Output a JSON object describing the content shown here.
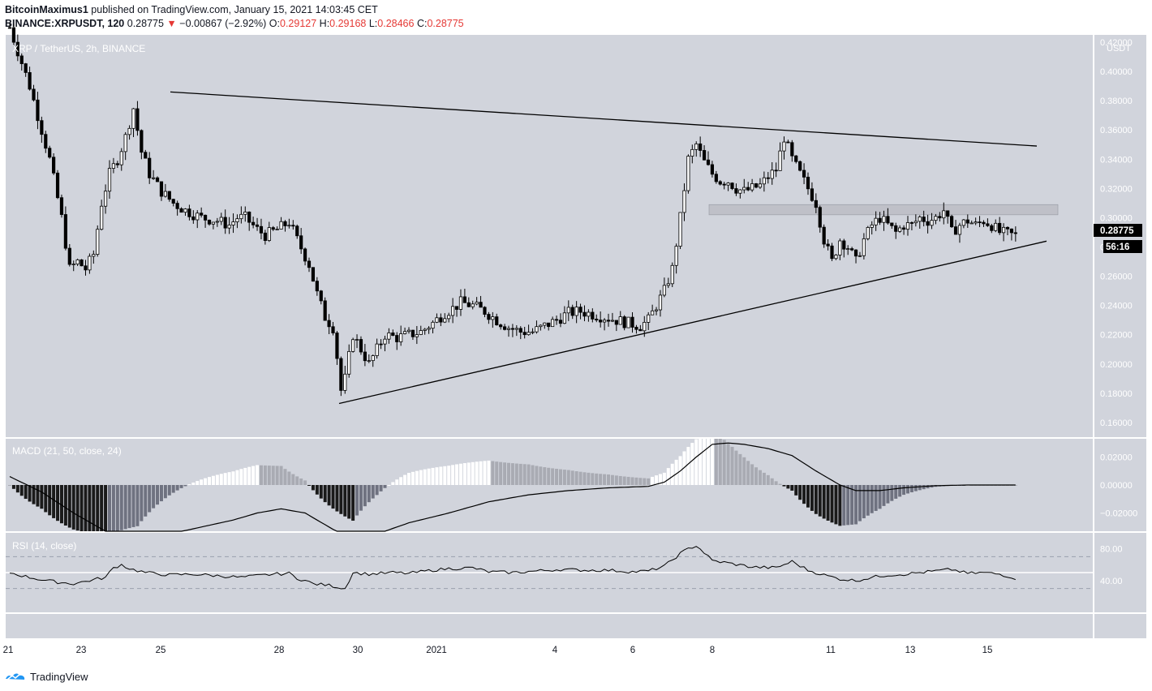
{
  "header": {
    "author": "BitcoinMaximus1",
    "published_text": "published on TradingView.com, January 15, 2021 14:03:45 CET",
    "symbol": "BINANCE:XRPUSDT, 120",
    "last": "0.28775",
    "arrow": "▼",
    "change": "−0.00867 (−2.92%)",
    "o_label": "O:",
    "o": "0.29127",
    "h_label": "H:",
    "h": "0.29168",
    "l_label": "L:",
    "l": "0.28466",
    "c_label": "C:",
    "c": "0.28775"
  },
  "main": {
    "legend": "XRP / TetherUS, 2h, BINANCE",
    "currency": "USDT",
    "price_ticks": [
      "0.42000",
      "0.40000",
      "0.38000",
      "0.36000",
      "0.34000",
      "0.32000",
      "0.30000",
      "0.28000",
      "0.26000",
      "0.24000",
      "0.22000",
      "0.20000",
      "0.18000",
      "0.16000"
    ],
    "last_price_label": "0.28775",
    "countdown": "56:16"
  },
  "macd": {
    "legend": "MACD (21, 50, close, 24)",
    "ticks": [
      "0.02000",
      "0.00000",
      "−0.02000"
    ]
  },
  "rsi": {
    "legend": "RSI (14, close)",
    "ticks": [
      "80.00",
      "40.00"
    ]
  },
  "time_axis": {
    "ticks": [
      "21",
      "23",
      "25",
      "28",
      "30",
      "2021",
      "4",
      "6",
      "8",
      "11",
      "13",
      "15"
    ]
  },
  "footer": {
    "brand": "TradingView"
  },
  "colors": {
    "pane_bg": "#d1d4dc",
    "candle": "#000000",
    "hist_dark": "#1a1a1a",
    "hist_light": "#a9abb3",
    "hist_white": "#ffffff",
    "last_price_bg": "#000000",
    "zone": "#b8bac2"
  },
  "chart_data": [
    {
      "type": "candlestick",
      "pane": "price",
      "legend": "XRP / TetherUS, 2h, BINANCE",
      "ylim": [
        0.15,
        0.425
      ],
      "y_ticks": [
        0.16,
        0.18,
        0.2,
        0.22,
        0.24,
        0.26,
        0.28,
        0.3,
        0.32,
        0.34,
        0.36,
        0.38,
        0.4,
        0.42
      ],
      "x_ticks": [
        "21",
        "23",
        "25",
        "28",
        "30",
        "2021",
        "4",
        "6",
        "8",
        "11",
        "13",
        "15"
      ],
      "last": 0.28775,
      "close_path": [
        [
          0,
          0.43
        ],
        [
          5,
          0.39
        ],
        [
          8,
          0.36
        ],
        [
          10,
          0.34
        ],
        [
          13,
          0.3
        ],
        [
          15,
          0.265
        ],
        [
          17,
          0.27
        ],
        [
          19,
          0.265
        ],
        [
          21,
          0.275
        ],
        [
          23,
          0.31
        ],
        [
          25,
          0.33
        ],
        [
          27,
          0.34
        ],
        [
          29,
          0.355
        ],
        [
          31,
          0.375
        ],
        [
          33,
          0.345
        ],
        [
          35,
          0.33
        ],
        [
          38,
          0.318
        ],
        [
          41,
          0.31
        ],
        [
          44,
          0.305
        ],
        [
          48,
          0.3
        ],
        [
          52,
          0.298
        ],
        [
          55,
          0.295
        ],
        [
          57,
          0.3
        ],
        [
          59,
          0.3
        ],
        [
          62,
          0.292
        ],
        [
          64,
          0.288
        ],
        [
          67,
          0.292
        ],
        [
          70,
          0.297
        ],
        [
          72,
          0.285
        ],
        [
          75,
          0.268
        ],
        [
          77,
          0.248
        ],
        [
          79,
          0.232
        ],
        [
          81,
          0.225
        ],
        [
          82,
          0.205
        ],
        [
          83,
          0.182
        ],
        [
          84,
          0.19
        ],
        [
          86,
          0.22
        ],
        [
          88,
          0.21
        ],
        [
          90,
          0.2
        ],
        [
          92,
          0.21
        ],
        [
          94,
          0.22
        ],
        [
          97,
          0.218
        ],
        [
          100,
          0.22
        ],
        [
          103,
          0.222
        ],
        [
          106,
          0.228
        ],
        [
          109,
          0.235
        ],
        [
          111,
          0.238
        ],
        [
          113,
          0.242
        ],
        [
          116,
          0.24
        ],
        [
          119,
          0.236
        ],
        [
          122,
          0.23
        ],
        [
          125,
          0.225
        ],
        [
          128,
          0.222
        ],
        [
          131,
          0.222
        ],
        [
          134,
          0.226
        ],
        [
          137,
          0.23
        ],
        [
          140,
          0.235
        ],
        [
          143,
          0.236
        ],
        [
          146,
          0.234
        ],
        [
          149,
          0.232
        ],
        [
          152,
          0.23
        ],
        [
          155,
          0.228
        ],
        [
          158,
          0.226
        ],
        [
          160,
          0.23
        ],
        [
          162,
          0.24
        ],
        [
          164,
          0.25
        ],
        [
          166,
          0.265
        ],
        [
          168,
          0.3
        ],
        [
          170,
          0.34
        ],
        [
          172,
          0.35
        ],
        [
          174,
          0.338
        ],
        [
          176,
          0.33
        ],
        [
          178,
          0.325
        ],
        [
          180,
          0.325
        ],
        [
          182,
          0.32
        ],
        [
          184,
          0.318
        ],
        [
          186,
          0.32
        ],
        [
          188,
          0.322
        ],
        [
          190,
          0.328
        ],
        [
          192,
          0.333
        ],
        [
          194,
          0.355
        ],
        [
          196,
          0.34
        ],
        [
          198,
          0.33
        ],
        [
          200,
          0.32
        ],
        [
          202,
          0.31
        ],
        [
          204,
          0.285
        ],
        [
          206,
          0.27
        ],
        [
          208,
          0.285
        ],
        [
          210,
          0.28
        ],
        [
          212,
          0.27
        ],
        [
          214,
          0.285
        ],
        [
          216,
          0.295
        ],
        [
          218,
          0.3
        ],
        [
          220,
          0.295
        ],
        [
          222,
          0.29
        ],
        [
          224,
          0.295
        ],
        [
          226,
          0.295
        ],
        [
          228,
          0.3
        ],
        [
          230,
          0.298
        ],
        [
          232,
          0.3
        ],
        [
          234,
          0.305
        ],
        [
          236,
          0.29
        ],
        [
          238,
          0.295
        ],
        [
          240,
          0.298
        ],
        [
          242,
          0.295
        ],
        [
          244,
          0.298
        ],
        [
          246,
          0.295
        ],
        [
          248,
          0.29
        ],
        [
          250,
          0.289
        ],
        [
          252,
          0.28775
        ]
      ],
      "trendlines": [
        {
          "name": "descending resistance",
          "from": [
            0.386
          ],
          "to": [
            0.349
          ]
        },
        {
          "name": "ascending support",
          "from": [
            0.173
          ],
          "to": [
            0.284
          ]
        }
      ],
      "zone": [
        0.302,
        0.309
      ]
    },
    {
      "type": "histogram+line",
      "pane": "macd",
      "legend": "MACD (21, 50, close, 24)",
      "y_ticks": [
        -0.02,
        0.0,
        0.02
      ],
      "ylim": [
        -0.033,
        0.033
      ],
      "macd_line": [
        [
          0,
          0.006
        ],
        [
          8,
          -0.005
        ],
        [
          16,
          -0.02
        ],
        [
          24,
          -0.033
        ],
        [
          32,
          -0.04
        ],
        [
          40,
          -0.035
        ],
        [
          48,
          -0.03
        ],
        [
          56,
          -0.025
        ],
        [
          62,
          -0.02
        ],
        [
          68,
          -0.017
        ],
        [
          74,
          -0.02
        ],
        [
          80,
          -0.03
        ],
        [
          86,
          -0.04
        ],
        [
          92,
          -0.035
        ],
        [
          100,
          -0.027
        ],
        [
          110,
          -0.02
        ],
        [
          120,
          -0.012
        ],
        [
          130,
          -0.007
        ],
        [
          140,
          -0.004
        ],
        [
          150,
          -0.002
        ],
        [
          160,
          -0.001
        ],
        [
          164,
          0.002
        ],
        [
          168,
          0.01
        ],
        [
          172,
          0.02
        ],
        [
          176,
          0.029
        ],
        [
          180,
          0.03
        ],
        [
          184,
          0.029
        ],
        [
          190,
          0.026
        ],
        [
          196,
          0.021
        ],
        [
          202,
          0.01
        ],
        [
          208,
          0.0
        ],
        [
          212,
          -0.004
        ],
        [
          218,
          -0.004
        ],
        [
          224,
          -0.002
        ],
        [
          232,
          -0.0005
        ],
        [
          240,
          0.0
        ],
        [
          252,
          0.0
        ]
      ],
      "histogram_note": "bars oscillate around zero, positive near 25-27 and 168-175"
    },
    {
      "type": "line",
      "pane": "rsi",
      "legend": "RSI (14, close)",
      "y_ticks": [
        40,
        80
      ],
      "ylim": [
        0,
        100
      ],
      "levels": [
        30,
        50,
        70
      ],
      "values": [
        [
          0,
          50
        ],
        [
          4,
          45
        ],
        [
          8,
          41
        ],
        [
          12,
          38
        ],
        [
          16,
          36
        ],
        [
          20,
          40
        ],
        [
          24,
          44
        ],
        [
          26,
          56
        ],
        [
          28,
          60
        ],
        [
          30,
          55
        ],
        [
          34,
          50
        ],
        [
          40,
          47
        ],
        [
          46,
          48
        ],
        [
          52,
          46
        ],
        [
          58,
          44
        ],
        [
          62,
          46
        ],
        [
          66,
          48
        ],
        [
          70,
          49
        ],
        [
          72,
          43
        ],
        [
          74,
          40
        ],
        [
          76,
          36
        ],
        [
          80,
          34
        ],
        [
          82,
          32
        ],
        [
          84,
          30
        ],
        [
          86,
          50
        ],
        [
          90,
          48
        ],
        [
          96,
          50
        ],
        [
          100,
          49
        ],
        [
          106,
          53
        ],
        [
          110,
          55
        ],
        [
          116,
          56
        ],
        [
          120,
          51
        ],
        [
          126,
          50
        ],
        [
          132,
          52
        ],
        [
          138,
          54
        ],
        [
          144,
          53
        ],
        [
          150,
          53
        ],
        [
          156,
          51
        ],
        [
          160,
          52
        ],
        [
          164,
          58
        ],
        [
          166,
          66
        ],
        [
          168,
          74
        ],
        [
          170,
          80
        ],
        [
          172,
          84
        ],
        [
          174,
          75
        ],
        [
          176,
          65
        ],
        [
          180,
          62
        ],
        [
          186,
          57
        ],
        [
          192,
          56
        ],
        [
          196,
          64
        ],
        [
          200,
          53
        ],
        [
          204,
          47
        ],
        [
          208,
          42
        ],
        [
          212,
          40
        ],
        [
          216,
          44
        ],
        [
          220,
          47
        ],
        [
          224,
          48
        ],
        [
          230,
          51
        ],
        [
          236,
          54
        ],
        [
          240,
          49
        ],
        [
          244,
          50
        ],
        [
          248,
          48
        ],
        [
          252,
          43
        ]
      ]
    }
  ]
}
